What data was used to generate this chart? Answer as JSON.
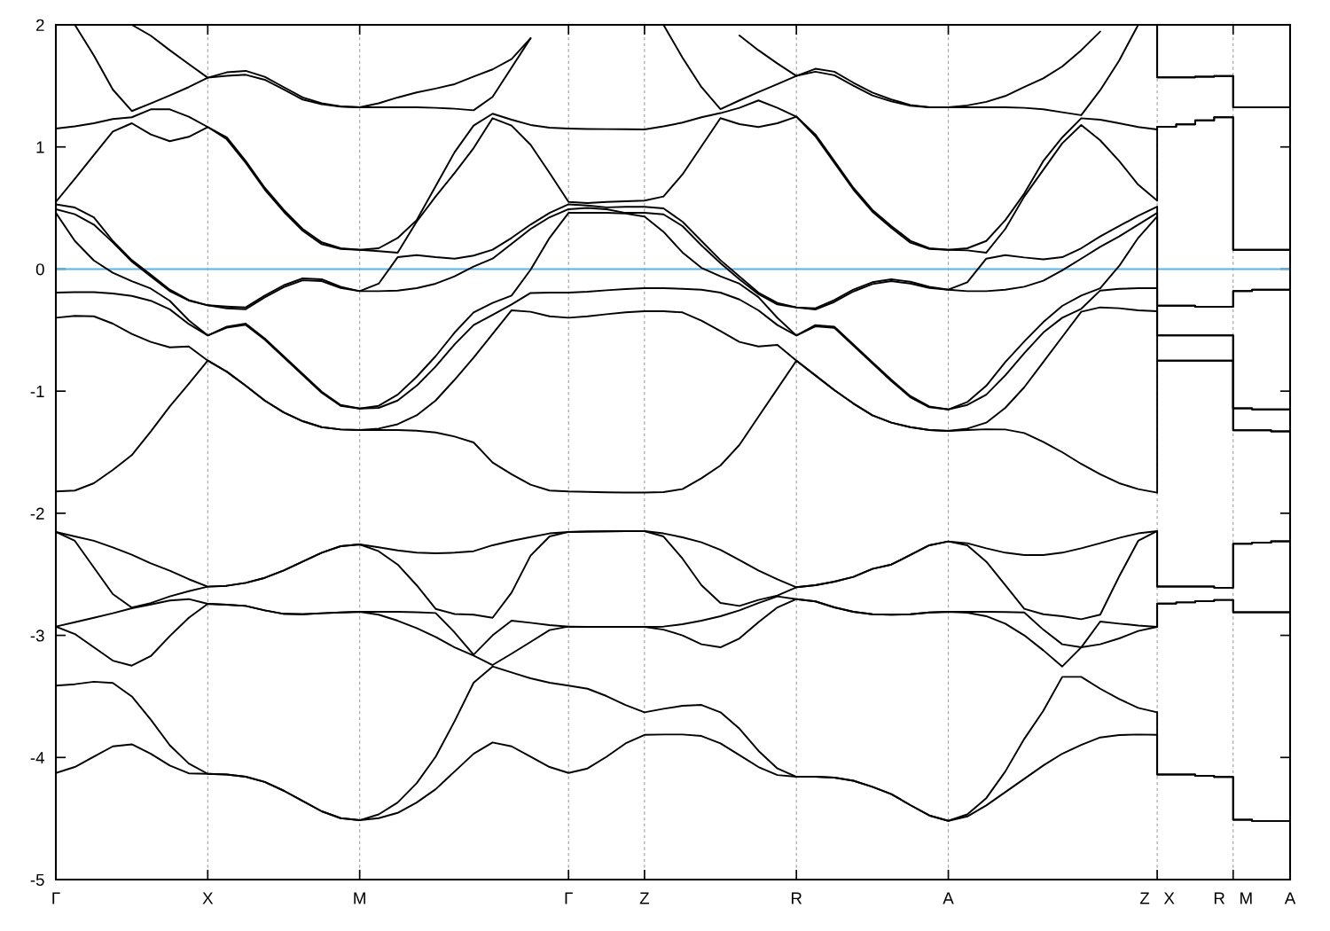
{
  "chart_data": {
    "type": "line",
    "categories": [
      "Γ",
      null,
      null,
      null,
      null,
      null,
      null,
      null,
      "X",
      null,
      null,
      null,
      null,
      null,
      null,
      null,
      "M",
      null,
      null,
      null,
      null,
      null,
      null,
      null,
      null,
      null,
      null,
      "Γ",
      null,
      null,
      null,
      "Z",
      null,
      null,
      null,
      null,
      null,
      null,
      null,
      "R",
      null,
      null,
      null,
      null,
      null,
      null,
      null,
      "A",
      null,
      null,
      null,
      null,
      null,
      null,
      null,
      null,
      null,
      null,
      "Z   X",
      null,
      null,
      null,
      "R   M",
      null,
      null,
      "A"
    ],
    "ylim": [
      -5,
      2
    ],
    "yticks": [
      -5,
      -4,
      -3,
      -2,
      -1,
      0,
      1,
      2
    ],
    "grid": "x",
    "ref_lines": [
      {
        "axis": "y",
        "value": 0,
        "color": "#56b4e9"
      }
    ],
    "series": [
      {
        "color": "#000000",
        "values": [
          -4.127,
          -4.078,
          -3.994,
          -3.909,
          -3.892,
          -3.97,
          -4.066,
          -4.13,
          -4.134,
          -4.139,
          -4.158,
          -4.2,
          -4.272,
          -4.357,
          -4.441,
          -4.497,
          -4.514,
          -4.497,
          -4.454,
          -4.369,
          -4.26,
          -4.115,
          -3.97,
          -3.877,
          -3.909,
          -3.994,
          -4.078,
          -4.127,
          -4.09,
          -3.994,
          -3.885,
          -3.815,
          -3.812,
          -3.812,
          -3.824,
          -3.885,
          -3.981,
          -4.078,
          -4.144,
          -4.158,
          -4.158,
          -4.165,
          -4.19,
          -4.24,
          -4.3,
          -4.39,
          -4.475,
          -4.519,
          -4.483,
          -4.393,
          -4.284,
          -4.175,
          -4.066,
          -3.969,
          -3.897,
          -3.836,
          -3.817,
          -3.812,
          -3.815,
          null,
          null,
          null,
          null,
          null,
          null,
          null
        ]
      },
      {
        "color": "#000000",
        "values": [
          -3.412,
          -3.4,
          -3.38,
          -3.39,
          -3.5,
          -3.69,
          -3.9,
          -4.05,
          -4.134,
          -4.139,
          -4.158,
          -4.2,
          -4.272,
          -4.357,
          -4.441,
          -4.497,
          -4.514,
          -4.466,
          -4.369,
          -4.211,
          -3.994,
          -3.703,
          -3.388,
          -3.255,
          -3.304,
          -3.352,
          -3.388,
          -3.412,
          -3.437,
          -3.497,
          -3.57,
          -3.63,
          -3.601,
          -3.577,
          -3.57,
          -3.63,
          -3.764,
          -3.945,
          -4.09,
          -4.158,
          -4.158,
          -4.165,
          -4.19,
          -4.24,
          -4.3,
          -4.39,
          -4.475,
          -4.519,
          -4.466,
          -4.333,
          -4.115,
          -3.848,
          -3.618,
          -3.34,
          -3.34,
          -3.437,
          -3.521,
          -3.594,
          -3.63,
          null,
          null,
          null,
          null,
          null,
          null,
          null
        ]
      },
      {
        "color": "#000000",
        "values": [
          -2.928,
          -2.989,
          -3.098,
          -3.207,
          -3.248,
          -3.17,
          -3.006,
          -2.856,
          -2.742,
          -2.749,
          -2.759,
          -2.795,
          -2.824,
          -2.827,
          -2.819,
          -2.812,
          -2.807,
          -2.831,
          -2.88,
          -2.94,
          -3.013,
          -3.098,
          -3.165,
          -3.243,
          -3.15,
          -3.054,
          -2.957,
          -2.928,
          -2.93,
          -2.93,
          -2.93,
          -2.93,
          -2.953,
          -3.0,
          -3.073,
          -3.098,
          -3.025,
          -2.892,
          -2.771,
          -2.703,
          -2.722,
          -2.771,
          -2.807,
          -2.827,
          -2.831,
          -2.827,
          -2.812,
          -2.807,
          -2.814,
          -2.843,
          -2.904,
          -3.0,
          -3.122,
          -3.255,
          -3.098,
          -3.073,
          -3.025,
          -2.964,
          -2.93,
          null,
          null,
          null,
          null,
          null,
          null,
          null
        ]
      },
      {
        "color": "#000000",
        "values": [
          -2.928,
          -2.892,
          -2.856,
          -2.819,
          -2.778,
          -2.747,
          -2.715,
          -2.703,
          -2.742,
          -2.749,
          -2.759,
          -2.795,
          -2.824,
          -2.827,
          -2.819,
          -2.812,
          -2.807,
          -2.807,
          -2.807,
          -2.81,
          -2.817,
          -2.976,
          -3.158,
          -3.0,
          -2.88,
          -2.897,
          -2.916,
          -2.928,
          -2.93,
          -2.93,
          -2.93,
          -2.93,
          -2.928,
          -2.909,
          -2.88,
          -2.843,
          -2.795,
          -2.735,
          -2.681,
          -2.703,
          -2.722,
          -2.771,
          -2.807,
          -2.827,
          -2.831,
          -2.827,
          -2.812,
          -2.807,
          -2.807,
          -2.807,
          -2.809,
          -2.812,
          -2.953,
          -3.073,
          -3.098,
          -2.887,
          -2.904,
          -2.919,
          -2.93,
          null,
          null,
          null,
          null,
          null,
          null,
          null
        ]
      },
      {
        "color": "#000000",
        "values": [
          -2.153,
          -2.226,
          -2.444,
          -2.662,
          -2.773,
          -2.735,
          -2.681,
          -2.638,
          -2.601,
          -2.594,
          -2.57,
          -2.529,
          -2.468,
          -2.396,
          -2.323,
          -2.27,
          -2.255,
          -2.311,
          -2.42,
          -2.589,
          -2.783,
          -2.825,
          -2.831,
          -2.856,
          -2.65,
          -2.347,
          -2.19,
          -2.153,
          -2.15,
          -2.148,
          -2.146,
          -2.146,
          -2.19,
          -2.371,
          -2.589,
          -2.734,
          -2.759,
          -2.71,
          -2.674,
          -2.606,
          -2.589,
          -2.56,
          -2.521,
          -2.456,
          -2.42,
          -2.342,
          -2.262,
          -2.231,
          -2.262,
          -2.396,
          -2.589,
          -2.783,
          -2.827,
          -2.843,
          -2.868,
          -2.831,
          -2.517,
          -2.226,
          -2.146,
          null,
          null,
          null,
          null,
          null,
          null,
          null
        ]
      },
      {
        "color": "#000000",
        "values": [
          -2.153,
          -2.19,
          -2.225,
          -2.28,
          -2.34,
          -2.41,
          -2.47,
          -2.54,
          -2.601,
          -2.594,
          -2.57,
          -2.529,
          -2.468,
          -2.396,
          -2.323,
          -2.27,
          -2.255,
          -2.279,
          -2.304,
          -2.323,
          -2.328,
          -2.323,
          -2.311,
          -2.262,
          -2.226,
          -2.195,
          -2.165,
          -2.153,
          -2.15,
          -2.148,
          -2.146,
          -2.146,
          -2.165,
          -2.197,
          -2.238,
          -2.299,
          -2.383,
          -2.468,
          -2.541,
          -2.606,
          -2.589,
          -2.56,
          -2.521,
          -2.456,
          -2.42,
          -2.342,
          -2.262,
          -2.231,
          -2.245,
          -2.287,
          -2.323,
          -2.342,
          -2.342,
          -2.323,
          -2.287,
          -2.245,
          -2.202,
          -2.165,
          -2.146,
          null,
          null,
          null,
          null,
          null,
          null,
          null
        ]
      },
      {
        "color": "#000000",
        "values": [
          -1.822,
          -1.814,
          -1.754,
          -1.645,
          -1.524,
          -1.33,
          -1.125,
          -0.94,
          -0.75,
          -0.84,
          -0.956,
          -1.077,
          -1.174,
          -1.246,
          -1.295,
          -1.314,
          -1.319,
          -1.319,
          -1.319,
          -1.324,
          -1.338,
          -1.372,
          -1.42,
          -1.584,
          -1.681,
          -1.766,
          -1.814,
          -1.822,
          -1.825,
          -1.828,
          -1.83,
          -1.831,
          -1.827,
          -1.802,
          -1.713,
          -1.609,
          -1.44,
          -1.21,
          -0.98,
          -0.75,
          -0.871,
          -0.992,
          -1.101,
          -1.198,
          -1.258,
          -1.295,
          -1.319,
          -1.326,
          -1.319,
          -1.312,
          -1.314,
          -1.343,
          -1.416,
          -1.5,
          -1.596,
          -1.681,
          -1.754,
          -1.802,
          -1.831,
          null,
          null,
          null,
          null,
          null,
          null,
          null
        ]
      },
      {
        "color": "#000000",
        "values": [
          -0.399,
          -0.384,
          -0.387,
          -0.447,
          -0.532,
          -0.597,
          -0.641,
          -0.634,
          -0.75,
          -0.84,
          -0.956,
          -1.077,
          -1.174,
          -1.246,
          -1.295,
          -1.314,
          -1.319,
          -1.307,
          -1.271,
          -1.198,
          -1.077,
          -0.907,
          -0.726,
          -0.532,
          -0.338,
          -0.35,
          -0.387,
          -0.399,
          -0.387,
          -0.37,
          -0.355,
          -0.346,
          -0.346,
          -0.355,
          -0.423,
          -0.508,
          -0.597,
          -0.634,
          -0.622,
          -0.75,
          -0.871,
          -0.992,
          -1.101,
          -1.198,
          -1.258,
          -1.295,
          -1.319,
          -1.326,
          -1.307,
          -1.258,
          -1.137,
          -0.968,
          -0.762,
          -0.556,
          -0.35,
          -0.314,
          -0.321,
          -0.338,
          -0.346,
          null,
          null,
          null,
          null,
          null,
          null,
          null
        ]
      },
      {
        "color": "#000000",
        "values": [
          -0.193,
          -0.19,
          -0.19,
          -0.2,
          -0.22,
          -0.26,
          -0.33,
          -0.45,
          -0.544,
          -0.48,
          -0.457,
          -0.578,
          -0.724,
          -0.869,
          -1.014,
          -1.12,
          -1.142,
          -1.137,
          -1.077,
          -0.956,
          -0.798,
          -0.617,
          -0.459,
          -0.375,
          -0.29,
          -0.196,
          -0.193,
          -0.193,
          -0.186,
          -0.174,
          -0.164,
          -0.157,
          -0.157,
          -0.162,
          -0.169,
          -0.193,
          -0.249,
          -0.338,
          -0.459,
          -0.544,
          -0.469,
          -0.482,
          -0.627,
          -0.772,
          -0.917,
          -1.05,
          -1.132,
          -1.15,
          -1.113,
          -1.029,
          -0.871,
          -0.69,
          -0.52,
          -0.399,
          -0.326,
          -0.176,
          -0.162,
          -0.157,
          -0.157,
          null,
          null,
          null,
          null,
          null,
          null,
          null
        ]
      },
      {
        "color": "#000000",
        "values": [
          0.46,
          0.23,
          0.07,
          -0.03,
          -0.1,
          -0.16,
          -0.26,
          -0.42,
          -0.544,
          -0.472,
          -0.447,
          -0.568,
          -0.714,
          -0.859,
          -1.004,
          -1.113,
          -1.142,
          -1.12,
          -1.029,
          -0.883,
          -0.714,
          -0.52,
          -0.355,
          -0.278,
          -0.217,
          -0.006,
          0.255,
          0.46,
          0.46,
          0.46,
          0.455,
          0.43,
          0.305,
          0.136,
          0.01,
          -0.06,
          -0.12,
          -0.23,
          -0.4,
          -0.544,
          -0.459,
          -0.472,
          -0.617,
          -0.762,
          -0.907,
          -1.04,
          -1.125,
          -1.15,
          -1.089,
          -0.956,
          -0.762,
          -0.593,
          -0.435,
          -0.302,
          -0.217,
          -0.157,
          0.025,
          0.255,
          0.43,
          null,
          null,
          null,
          null,
          null,
          null,
          null
        ]
      },
      {
        "color": "#000000",
        "values": [
          0.49,
          0.449,
          0.364,
          0.218,
          0.061,
          -0.06,
          -0.181,
          -0.258,
          -0.297,
          -0.322,
          -0.329,
          -0.232,
          -0.148,
          -0.092,
          -0.099,
          -0.155,
          -0.181,
          -0.181,
          -0.176,
          -0.157,
          -0.12,
          -0.06,
          0.02,
          0.085,
          0.206,
          0.328,
          0.424,
          0.49,
          0.5,
          0.49,
          0.46,
          0.46,
          0.448,
          0.352,
          0.194,
          0.049,
          -0.084,
          -0.205,
          -0.29,
          -0.314,
          -0.331,
          -0.269,
          -0.184,
          -0.123,
          -0.099,
          -0.119,
          -0.155,
          -0.169,
          -0.181,
          -0.181,
          -0.169,
          -0.145,
          -0.096,
          -0.01,
          0.085,
          0.182,
          0.267,
          0.364,
          0.46,
          null,
          null,
          null,
          null,
          null,
          null,
          null
        ]
      },
      {
        "color": "#000000",
        "values": [
          0.53,
          0.504,
          0.424,
          0.23,
          0.073,
          -0.046,
          -0.169,
          -0.254,
          -0.297,
          -0.307,
          -0.314,
          -0.217,
          -0.133,
          -0.077,
          -0.084,
          -0.145,
          -0.181,
          -0.12,
          0.097,
          0.114,
          0.097,
          0.085,
          0.11,
          0.158,
          0.255,
          0.364,
          0.46,
          0.53,
          0.52,
          0.505,
          0.51,
          0.51,
          0.497,
          0.388,
          0.23,
          0.073,
          -0.06,
          -0.193,
          -0.278,
          -0.314,
          -0.321,
          -0.254,
          -0.169,
          -0.108,
          -0.084,
          -0.104,
          -0.145,
          -0.169,
          -0.108,
          0.085,
          0.114,
          0.095,
          0.08,
          0.097,
          0.17,
          0.267,
          0.352,
          0.436,
          0.51,
          null,
          null,
          null,
          null,
          null,
          null,
          null
        ]
      },
      {
        "color": "#000000",
        "values": [
          0.55,
          0.739,
          0.933,
          1.126,
          1.194,
          1.102,
          1.047,
          1.083,
          1.163,
          1.063,
          0.869,
          0.651,
          0.47,
          0.313,
          0.204,
          0.165,
          0.158,
          0.146,
          0.134,
          0.388,
          0.594,
          0.787,
          0.99,
          1.235,
          1.175,
          1.018,
          0.787,
          0.55,
          0.54,
          0.55,
          0.555,
          0.56,
          0.594,
          0.775,
          1.005,
          1.236,
          1.187,
          1.163,
          1.194,
          1.248,
          1.087,
          0.869,
          0.651,
          0.47,
          0.337,
          0.216,
          0.165,
          0.158,
          0.153,
          0.134,
          0.328,
          0.594,
          0.812,
          1.03,
          1.18,
          1.054,
          0.884,
          0.691,
          0.56,
          null,
          null,
          null,
          null,
          null,
          null,
          null
        ]
      },
      {
        "color": "#000000",
        "values": [
          1.151,
          1.168,
          1.194,
          1.228,
          1.243,
          1.308,
          1.308,
          1.248,
          1.163,
          1.078,
          0.884,
          0.666,
          0.485,
          0.328,
          0.219,
          0.17,
          0.158,
          0.17,
          0.254,
          0.4,
          0.679,
          0.957,
          1.175,
          1.272,
          1.223,
          1.18,
          1.158,
          1.151,
          1.147,
          1.146,
          1.145,
          1.143,
          1.168,
          1.199,
          1.243,
          1.277,
          1.32,
          1.381,
          1.32,
          1.248,
          1.102,
          0.884,
          0.666,
          0.485,
          0.352,
          0.231,
          0.17,
          0.158,
          0.17,
          0.23,
          0.4,
          0.618,
          0.884,
          1.078,
          1.235,
          1.223,
          1.194,
          1.163,
          1.143,
          null,
          null,
          null,
          null,
          null,
          null,
          null
        ]
      },
      {
        "color": "#000000",
        "values": [
          null,
          2.0,
          1.749,
          1.47,
          1.294,
          1.357,
          1.422,
          1.49,
          1.567,
          1.582,
          1.591,
          1.55,
          1.47,
          1.388,
          1.349,
          1.33,
          1.325,
          1.325,
          1.325,
          1.325,
          1.32,
          1.313,
          1.3,
          1.41,
          1.65,
          1.89,
          null,
          null,
          null,
          null,
          null,
          null,
          2.0,
          1.732,
          1.49,
          1.31,
          1.381,
          1.449,
          1.514,
          1.582,
          1.616,
          1.587,
          1.502,
          1.422,
          1.373,
          1.337,
          1.325,
          1.325,
          1.325,
          1.325,
          1.325,
          1.32,
          1.308,
          1.284,
          1.26,
          1.465,
          1.708,
          2.0,
          null,
          null,
          null,
          null,
          null,
          null,
          null,
          null
        ]
      },
      {
        "color": "#000000",
        "values": [
          null,
          null,
          null,
          null,
          2.0,
          1.911,
          1.792,
          1.679,
          1.567,
          1.611,
          1.623,
          1.574,
          1.49,
          1.405,
          1.357,
          1.332,
          1.325,
          1.357,
          1.405,
          1.446,
          1.478,
          1.514,
          1.576,
          1.635,
          1.72,
          1.89,
          null,
          null,
          null,
          null,
          null,
          null,
          null,
          null,
          null,
          null,
          1.913,
          1.792,
          1.683,
          1.582,
          1.64,
          1.616,
          1.526,
          1.446,
          1.388,
          1.344,
          1.325,
          1.325,
          1.34,
          1.369,
          1.417,
          1.49,
          1.562,
          1.659,
          1.792,
          1.945,
          null,
          null,
          null,
          null,
          null,
          null,
          null,
          null,
          null,
          null
        ]
      },
      {
        "type": "step",
        "color": "#000000",
        "values": [
          null,
          null,
          null,
          null,
          null,
          null,
          null,
          null,
          null,
          null,
          null,
          null,
          null,
          null,
          null,
          null,
          null,
          null,
          null,
          null,
          null,
          null,
          null,
          null,
          null,
          null,
          null,
          null,
          null,
          null,
          null,
          null,
          null,
          null,
          null,
          null,
          null,
          null,
          null,
          null,
          null,
          null,
          null,
          null,
          null,
          null,
          null,
          null,
          null,
          null,
          null,
          null,
          null,
          null,
          null,
          null,
          null,
          null,
          -3.815,
          -4.14,
          -4.14,
          -4.15,
          -4.16,
          -4.51,
          -4.52,
          -4.52
        ]
      },
      {
        "type": "step",
        "color": "#000000",
        "values": [
          null,
          null,
          null,
          null,
          null,
          null,
          null,
          null,
          null,
          null,
          null,
          null,
          null,
          null,
          null,
          null,
          null,
          null,
          null,
          null,
          null,
          null,
          null,
          null,
          null,
          null,
          null,
          null,
          null,
          null,
          null,
          null,
          null,
          null,
          null,
          null,
          null,
          null,
          null,
          null,
          null,
          null,
          null,
          null,
          null,
          null,
          null,
          null,
          null,
          null,
          null,
          null,
          null,
          null,
          null,
          null,
          null,
          null,
          -3.63,
          -4.14,
          -4.14,
          -4.15,
          -4.16,
          -4.51,
          -4.52,
          -4.52
        ]
      },
      {
        "type": "step",
        "color": "#000000",
        "values": [
          null,
          null,
          null,
          null,
          null,
          null,
          null,
          null,
          null,
          null,
          null,
          null,
          null,
          null,
          null,
          null,
          null,
          null,
          null,
          null,
          null,
          null,
          null,
          null,
          null,
          null,
          null,
          null,
          null,
          null,
          null,
          null,
          null,
          null,
          null,
          null,
          null,
          null,
          null,
          null,
          null,
          null,
          null,
          null,
          null,
          null,
          null,
          null,
          null,
          null,
          null,
          null,
          null,
          null,
          null,
          null,
          null,
          null,
          -2.93,
          -2.74,
          -2.73,
          -2.72,
          -2.71,
          -2.81,
          -2.81,
          -2.81
        ]
      },
      {
        "type": "step",
        "color": "#000000",
        "values": [
          null,
          null,
          null,
          null,
          null,
          null,
          null,
          null,
          null,
          null,
          null,
          null,
          null,
          null,
          null,
          null,
          null,
          null,
          null,
          null,
          null,
          null,
          null,
          null,
          null,
          null,
          null,
          null,
          null,
          null,
          null,
          null,
          null,
          null,
          null,
          null,
          null,
          null,
          null,
          null,
          null,
          null,
          null,
          null,
          null,
          null,
          null,
          null,
          null,
          null,
          null,
          null,
          null,
          null,
          null,
          null,
          null,
          null,
          -2.93,
          -2.74,
          -2.73,
          -2.72,
          -2.71,
          -2.81,
          -2.81,
          -2.81
        ]
      },
      {
        "type": "step",
        "color": "#000000",
        "values": [
          null,
          null,
          null,
          null,
          null,
          null,
          null,
          null,
          null,
          null,
          null,
          null,
          null,
          null,
          null,
          null,
          null,
          null,
          null,
          null,
          null,
          null,
          null,
          null,
          null,
          null,
          null,
          null,
          null,
          null,
          null,
          null,
          null,
          null,
          null,
          null,
          null,
          null,
          null,
          null,
          null,
          null,
          null,
          null,
          null,
          null,
          null,
          null,
          null,
          null,
          null,
          null,
          null,
          null,
          null,
          null,
          null,
          null,
          -2.146,
          -2.6,
          -2.6,
          -2.6,
          -2.61,
          -2.25,
          -2.24,
          -2.23
        ]
      },
      {
        "type": "step",
        "color": "#000000",
        "values": [
          null,
          null,
          null,
          null,
          null,
          null,
          null,
          null,
          null,
          null,
          null,
          null,
          null,
          null,
          null,
          null,
          null,
          null,
          null,
          null,
          null,
          null,
          null,
          null,
          null,
          null,
          null,
          null,
          null,
          null,
          null,
          null,
          null,
          null,
          null,
          null,
          null,
          null,
          null,
          null,
          null,
          null,
          null,
          null,
          null,
          null,
          null,
          null,
          null,
          null,
          null,
          null,
          null,
          null,
          null,
          null,
          null,
          null,
          -2.146,
          -2.6,
          -2.6,
          -2.6,
          -2.61,
          -2.25,
          -2.24,
          -2.23
        ]
      },
      {
        "type": "step",
        "color": "#000000",
        "values": [
          null,
          null,
          null,
          null,
          null,
          null,
          null,
          null,
          null,
          null,
          null,
          null,
          null,
          null,
          null,
          null,
          null,
          null,
          null,
          null,
          null,
          null,
          null,
          null,
          null,
          null,
          null,
          null,
          null,
          null,
          null,
          null,
          null,
          null,
          null,
          null,
          null,
          null,
          null,
          null,
          null,
          null,
          null,
          null,
          null,
          null,
          null,
          null,
          null,
          null,
          null,
          null,
          null,
          null,
          null,
          null,
          null,
          null,
          -1.831,
          -0.75,
          -0.75,
          -0.75,
          -0.75,
          -1.32,
          -1.32,
          -1.33
        ]
      },
      {
        "type": "step",
        "color": "#000000",
        "values": [
          null,
          null,
          null,
          null,
          null,
          null,
          null,
          null,
          null,
          null,
          null,
          null,
          null,
          null,
          null,
          null,
          null,
          null,
          null,
          null,
          null,
          null,
          null,
          null,
          null,
          null,
          null,
          null,
          null,
          null,
          null,
          null,
          null,
          null,
          null,
          null,
          null,
          null,
          null,
          null,
          null,
          null,
          null,
          null,
          null,
          null,
          null,
          null,
          null,
          null,
          null,
          null,
          null,
          null,
          null,
          null,
          null,
          null,
          -0.346,
          -0.75,
          -0.75,
          -0.75,
          -0.75,
          -1.32,
          -1.32,
          -1.33
        ]
      },
      {
        "type": "step",
        "color": "#000000",
        "values": [
          null,
          null,
          null,
          null,
          null,
          null,
          null,
          null,
          null,
          null,
          null,
          null,
          null,
          null,
          null,
          null,
          null,
          null,
          null,
          null,
          null,
          null,
          null,
          null,
          null,
          null,
          null,
          null,
          null,
          null,
          null,
          null,
          null,
          null,
          null,
          null,
          null,
          null,
          null,
          null,
          null,
          null,
          null,
          null,
          null,
          null,
          null,
          null,
          null,
          null,
          null,
          null,
          null,
          null,
          null,
          null,
          null,
          null,
          -0.157,
          -0.544,
          -0.544,
          -0.544,
          -0.544,
          -1.14,
          -1.15,
          -1.15
        ]
      },
      {
        "type": "step",
        "color": "#000000",
        "values": [
          null,
          null,
          null,
          null,
          null,
          null,
          null,
          null,
          null,
          null,
          null,
          null,
          null,
          null,
          null,
          null,
          null,
          null,
          null,
          null,
          null,
          null,
          null,
          null,
          null,
          null,
          null,
          null,
          null,
          null,
          null,
          null,
          null,
          null,
          null,
          null,
          null,
          null,
          null,
          null,
          null,
          null,
          null,
          null,
          null,
          null,
          null,
          null,
          null,
          null,
          null,
          null,
          null,
          null,
          null,
          null,
          null,
          null,
          0.43,
          -0.544,
          -0.544,
          -0.544,
          -0.544,
          -1.14,
          -1.15,
          -1.15
        ]
      },
      {
        "type": "step",
        "color": "#000000",
        "values": [
          null,
          null,
          null,
          null,
          null,
          null,
          null,
          null,
          null,
          null,
          null,
          null,
          null,
          null,
          null,
          null,
          null,
          null,
          null,
          null,
          null,
          null,
          null,
          null,
          null,
          null,
          null,
          null,
          null,
          null,
          null,
          null,
          null,
          null,
          null,
          null,
          null,
          null,
          null,
          null,
          null,
          null,
          null,
          null,
          null,
          null,
          null,
          null,
          null,
          null,
          null,
          null,
          null,
          null,
          null,
          null,
          null,
          null,
          0.46,
          -0.3,
          -0.3,
          -0.31,
          -0.31,
          -0.18,
          -0.17,
          -0.17
        ]
      },
      {
        "type": "step",
        "color": "#000000",
        "values": [
          null,
          null,
          null,
          null,
          null,
          null,
          null,
          null,
          null,
          null,
          null,
          null,
          null,
          null,
          null,
          null,
          null,
          null,
          null,
          null,
          null,
          null,
          null,
          null,
          null,
          null,
          null,
          null,
          null,
          null,
          null,
          null,
          null,
          null,
          null,
          null,
          null,
          null,
          null,
          null,
          null,
          null,
          null,
          null,
          null,
          null,
          null,
          null,
          null,
          null,
          null,
          null,
          null,
          null,
          null,
          null,
          null,
          null,
          0.51,
          -0.3,
          -0.3,
          -0.31,
          -0.31,
          -0.18,
          -0.17,
          -0.17
        ]
      },
      {
        "type": "step",
        "color": "#000000",
        "values": [
          null,
          null,
          null,
          null,
          null,
          null,
          null,
          null,
          null,
          null,
          null,
          null,
          null,
          null,
          null,
          null,
          null,
          null,
          null,
          null,
          null,
          null,
          null,
          null,
          null,
          null,
          null,
          null,
          null,
          null,
          null,
          null,
          null,
          null,
          null,
          null,
          null,
          null,
          null,
          null,
          null,
          null,
          null,
          null,
          null,
          null,
          null,
          null,
          null,
          null,
          null,
          null,
          null,
          null,
          null,
          null,
          null,
          null,
          0.56,
          1.165,
          1.185,
          1.218,
          1.243,
          0.158,
          0.158,
          0.158
        ]
      },
      {
        "type": "step",
        "color": "#000000",
        "values": [
          null,
          null,
          null,
          null,
          null,
          null,
          null,
          null,
          null,
          null,
          null,
          null,
          null,
          null,
          null,
          null,
          null,
          null,
          null,
          null,
          null,
          null,
          null,
          null,
          null,
          null,
          null,
          null,
          null,
          null,
          null,
          null,
          null,
          null,
          null,
          null,
          null,
          null,
          null,
          null,
          null,
          null,
          null,
          null,
          null,
          null,
          null,
          null,
          null,
          null,
          null,
          null,
          null,
          null,
          null,
          null,
          null,
          null,
          1.143,
          1.165,
          1.185,
          1.218,
          1.243,
          0.158,
          0.158,
          0.158
        ]
      },
      {
        "type": "step",
        "color": "#000000",
        "values": [
          null,
          null,
          null,
          null,
          null,
          null,
          null,
          null,
          null,
          null,
          null,
          null,
          null,
          null,
          null,
          null,
          null,
          null,
          null,
          null,
          null,
          null,
          null,
          null,
          null,
          null,
          null,
          null,
          null,
          null,
          null,
          null,
          null,
          null,
          null,
          null,
          null,
          null,
          null,
          null,
          null,
          null,
          null,
          null,
          null,
          null,
          null,
          null,
          null,
          null,
          null,
          null,
          null,
          null,
          null,
          null,
          null,
          null,
          2.0,
          1.57,
          1.57,
          1.575,
          1.58,
          1.325,
          1.325,
          1.325
        ]
      },
      {
        "type": "step",
        "color": "#000000",
        "values": [
          null,
          null,
          null,
          null,
          null,
          null,
          null,
          null,
          null,
          null,
          null,
          null,
          null,
          null,
          null,
          null,
          null,
          null,
          null,
          null,
          null,
          null,
          null,
          null,
          null,
          null,
          null,
          null,
          null,
          null,
          null,
          null,
          null,
          null,
          null,
          null,
          null,
          null,
          null,
          null,
          null,
          null,
          null,
          null,
          null,
          null,
          null,
          null,
          null,
          null,
          null,
          null,
          null,
          null,
          null,
          null,
          null,
          null,
          2.0,
          1.57,
          1.57,
          1.575,
          1.58,
          1.325,
          1.325,
          1.325
        ]
      }
    ]
  }
}
